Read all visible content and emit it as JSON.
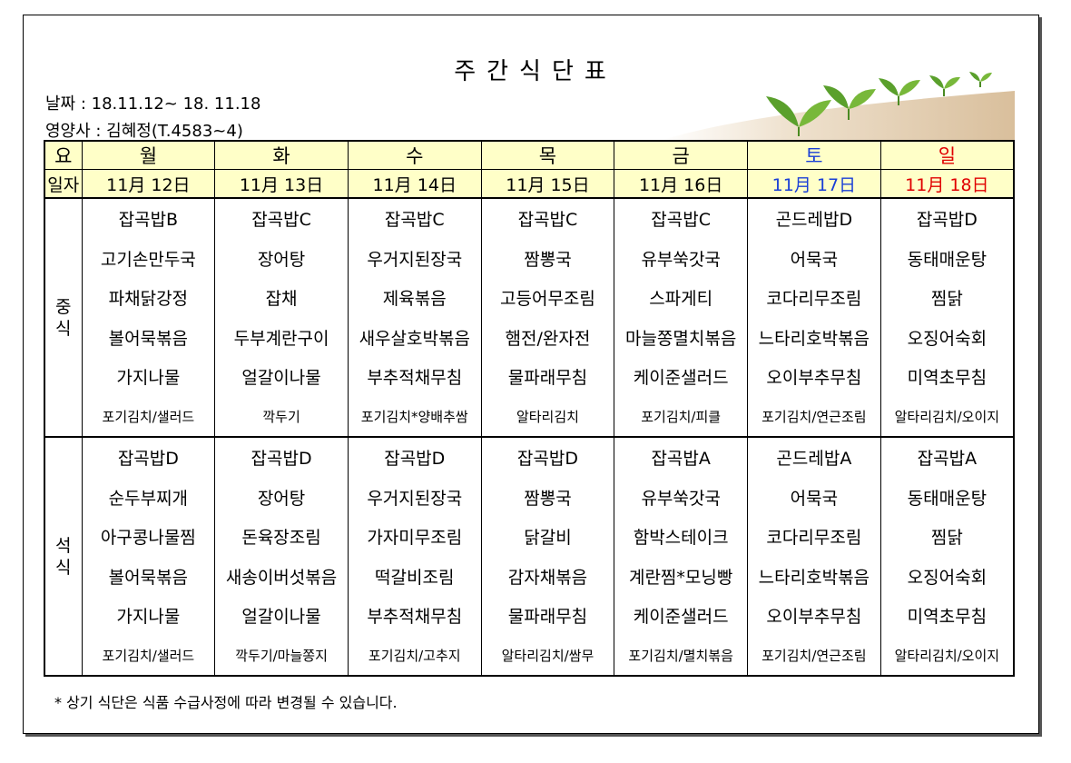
{
  "header": {
    "title": "주간식단표",
    "date": "날짜 : 18.11.12~ 18. 11.18",
    "nutritionist": "영양사 : 김혜정(T.4583~4)"
  },
  "table": {
    "label_day": "요",
    "label_date": "일자",
    "days": [
      "월",
      "화",
      "수",
      "목",
      "금",
      "토",
      "일"
    ],
    "dates": [
      "11月 12日",
      "11月 13日",
      "11月 14日",
      "11月 15日",
      "11月 16日",
      "11月 17日",
      "11月 18日"
    ],
    "colors": {
      "saturday": "#1a3fd6",
      "sunday": "#e00000",
      "header_bg": "#ffffc8"
    },
    "lunch_label": "중\n식",
    "dinner_label": "석\n식",
    "lunch": [
      [
        "잡곡밥B",
        "잡곡밥C",
        "잡곡밥C",
        "잡곡밥C",
        "잡곡밥C",
        "곤드레밥D",
        "잡곡밥D"
      ],
      [
        "고기손만두국",
        "장어탕",
        "우거지된장국",
        "짬뽕국",
        "유부쑥갓국",
        "어묵국",
        "동태매운탕"
      ],
      [
        "파채닭강정",
        "잡채",
        "제육볶음",
        "고등어무조림",
        "스파게티",
        "코다리무조림",
        "찜닭"
      ],
      [
        "볼어묵볶음",
        "두부계란구이",
        "새우살호박볶음",
        "햄전/완자전",
        "마늘쫑멸치볶음",
        "느타리호박볶음",
        "오징어숙회"
      ],
      [
        "가지나물",
        "얼갈이나물",
        "부추적채무침",
        "물파래무침",
        "케이준샐러드",
        "오이부추무침",
        "미역초무침"
      ],
      [
        "포기김치/샐러드",
        "깍두기",
        "포기김치*양배추쌈",
        "알타리김치",
        "포기김치/피클",
        "포기김치/연근조림",
        "알타리김치/오이지"
      ]
    ],
    "dinner": [
      [
        "잡곡밥D",
        "잡곡밥D",
        "잡곡밥D",
        "잡곡밥D",
        "잡곡밥A",
        "곤드레밥A",
        "잡곡밥A"
      ],
      [
        "순두부찌개",
        "장어탕",
        "우거지된장국",
        "짬뽕국",
        "유부쑥갓국",
        "어묵국",
        "동태매운탕"
      ],
      [
        "아구콩나물찜",
        "돈육장조림",
        "가자미무조림",
        "닭갈비",
        "함박스테이크",
        "코다리무조림",
        "찜닭"
      ],
      [
        "볼어묵볶음",
        "새송이버섯볶음",
        "떡갈비조림",
        "감자채볶음",
        "계란찜*모닝빵",
        "느타리호박볶음",
        "오징어숙회"
      ],
      [
        "가지나물",
        "얼갈이나물",
        "부추적채무침",
        "물파래무침",
        "케이준샐러드",
        "오이부추무침",
        "미역초무침"
      ],
      [
        "포기김치/샐러드",
        "깍두기/마늘쫑지",
        "포기김치/고추지",
        "알타리김치/쌈무",
        "포기김치/멸치볶음",
        "포기김치/연근조림",
        "알타리김치/오이지"
      ]
    ]
  },
  "note": "* 상기 식단은 식품 수급사정에 따라 변경될 수 있습니다."
}
